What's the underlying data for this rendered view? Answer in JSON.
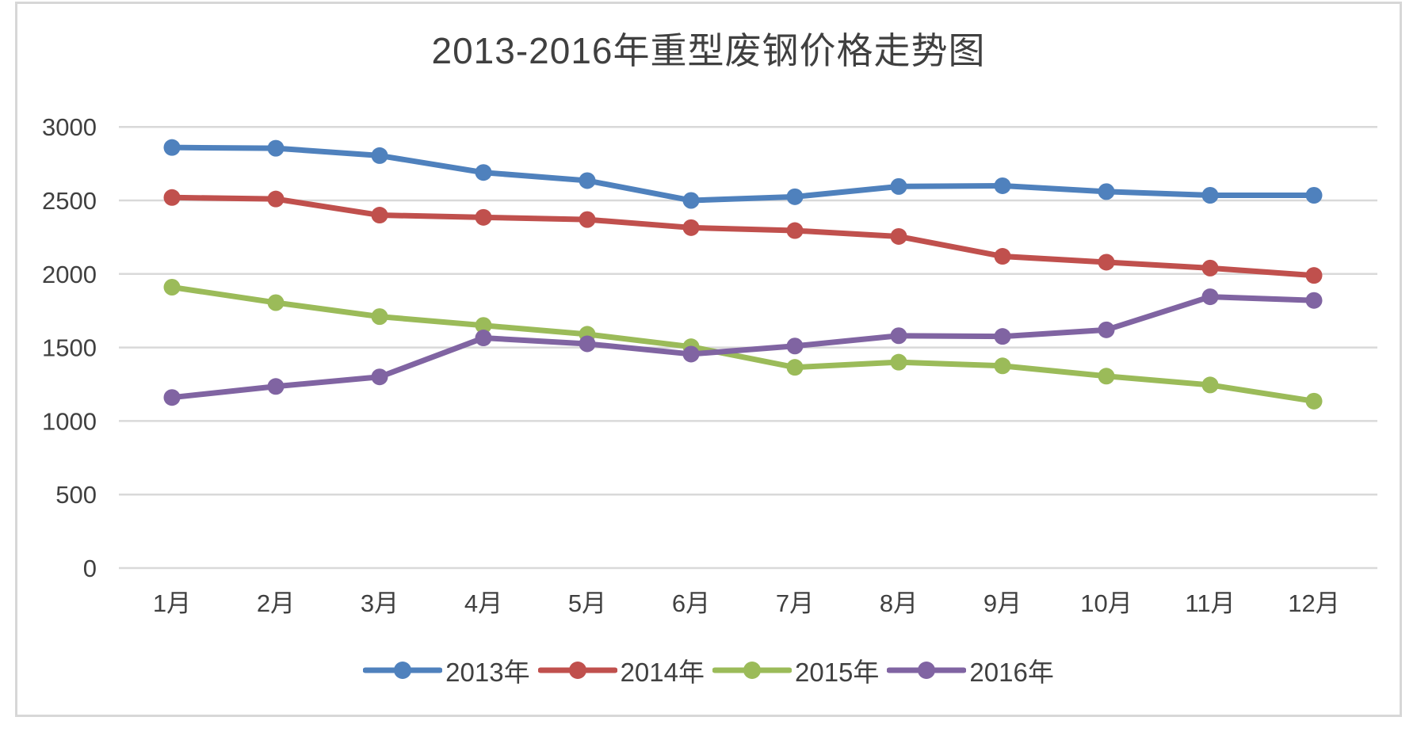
{
  "chart": {
    "title": "2013-2016年重型废钢价格走势图"
  },
  "chart_data": {
    "type": "line",
    "title": "2013-2016年重型废钢价格走势图",
    "categories": [
      "1月",
      "2月",
      "3月",
      "4月",
      "5月",
      "6月",
      "7月",
      "8月",
      "9月",
      "10月",
      "11月",
      "12月"
    ],
    "series": [
      {
        "name": "2013年",
        "color": "#4F81BD",
        "values": [
          2860,
          2855,
          2805,
          2690,
          2635,
          2500,
          2525,
          2595,
          2600,
          2560,
          2535,
          2535
        ]
      },
      {
        "name": "2014年",
        "color": "#C0504D",
        "values": [
          2520,
          2510,
          2400,
          2385,
          2370,
          2315,
          2295,
          2255,
          2120,
          2080,
          2040,
          1990
        ]
      },
      {
        "name": "2015年",
        "color": "#9BBB59",
        "values": [
          1910,
          1805,
          1710,
          1650,
          1590,
          1505,
          1365,
          1400,
          1375,
          1305,
          1245,
          1135
        ]
      },
      {
        "name": "2016年",
        "color": "#8064A2",
        "values": [
          1160,
          1235,
          1300,
          1565,
          1525,
          1455,
          1510,
          1580,
          1575,
          1620,
          1845,
          1820
        ]
      }
    ],
    "y_ticks": [
      0,
      500,
      1000,
      1500,
      2000,
      2500,
      3000
    ],
    "ylim": [
      0,
      3000
    ],
    "grid": true,
    "legend_position": "bottom",
    "xlabel": "",
    "ylabel": ""
  },
  "colors": {
    "text": "#404040",
    "gridline": "#D9D9D9",
    "frame_border": "#D7D7D7",
    "background": "#FFFFFF"
  }
}
